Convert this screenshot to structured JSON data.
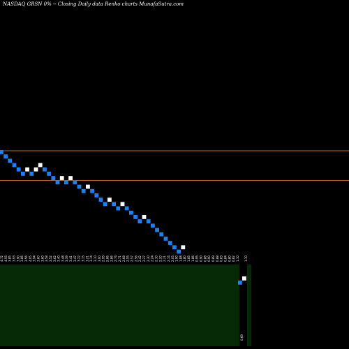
{
  "chart_data": {
    "type": "renko",
    "title": "NASDAQ GRSN  0% --  Closing Daily data  Renko  charts MunafaSutra.com",
    "colors": {
      "background": "#000000",
      "down_brick": "#1e7ff0",
      "up_brick": "#ffffff",
      "reference_line": "#b5651d",
      "volume_panel": "#062a06"
    },
    "brick_directions": [
      "down",
      "down",
      "down",
      "down",
      "down",
      "down",
      "up",
      "down",
      "up",
      "up",
      "down",
      "down",
      "down",
      "down",
      "up",
      "down",
      "up",
      "down",
      "down",
      "down",
      "up",
      "down",
      "down",
      "down",
      "down",
      "up",
      "down",
      "down",
      "up",
      "down",
      "down",
      "down",
      "down",
      "up",
      "down",
      "down",
      "down",
      "down",
      "down",
      "down",
      "down",
      "down",
      "up"
    ],
    "x_tick_labels": [
      "4.72",
      "4.55",
      "3.85",
      "3.93",
      "3.90",
      "3.86",
      "3.56",
      "4.05",
      "3.94",
      "3.60",
      "3.60",
      "3.58",
      "3.52",
      "3.62",
      "3.40",
      "3.48",
      "3.39",
      "3.41",
      "3.47",
      "3.22",
      "3.15",
      "3.21",
      "3.14",
      "3.10",
      "3.00",
      "2.95",
      "2.86",
      "2.86",
      "2.74",
      "2.71",
      "2.68",
      "2.55",
      "2.57",
      "2.56",
      "2.42",
      "2.27",
      "2.30",
      "2.24",
      "2.30",
      "2.20",
      "2.21",
      "2.14",
      "2.05",
      "1.90",
      "1.88",
      "1.80",
      "1.85",
      "1.86",
      "0.95",
      "0.90",
      "0.88",
      "0.90",
      "0.89",
      "0.88",
      "0.83",
      "0.84",
      "0.80",
      "0.82",
      "1.10"
    ],
    "right_labels": [
      "1.10",
      "0.69"
    ]
  }
}
